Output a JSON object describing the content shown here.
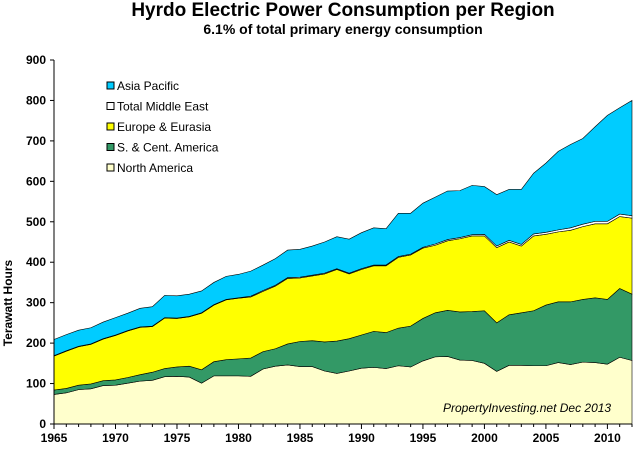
{
  "chart_data": {
    "type": "area",
    "stacked": true,
    "title": "Hyrdo Electric Power Consumption per Region",
    "subtitle": "6.1% of total primary energy consumption",
    "ylabel": "Terawatt Hours",
    "xlabel": "",
    "xlim": [
      1965,
      2012
    ],
    "ylim": [
      0,
      900
    ],
    "yticks": [
      0,
      100,
      200,
      300,
      400,
      500,
      600,
      700,
      800,
      900
    ],
    "xticks": [
      1965,
      1970,
      1975,
      1980,
      1985,
      1990,
      1995,
      2000,
      2005,
      2010
    ],
    "annotation": "PropertyInvesting.net  Dec 2013",
    "legend_position": "top-left",
    "x": [
      1965,
      1966,
      1967,
      1968,
      1969,
      1970,
      1971,
      1972,
      1973,
      1974,
      1975,
      1976,
      1977,
      1978,
      1979,
      1980,
      1981,
      1982,
      1983,
      1984,
      1985,
      1986,
      1987,
      1988,
      1989,
      1990,
      1991,
      1992,
      1993,
      1994,
      1995,
      1996,
      1997,
      1998,
      1999,
      2000,
      2001,
      2002,
      2003,
      2004,
      2005,
      2006,
      2007,
      2008,
      2009,
      2010,
      2011,
      2012
    ],
    "series": [
      {
        "name": "North America",
        "color": "#ffffcc",
        "values": [
          73,
          77,
          85,
          87,
          95,
          96,
          101,
          106,
          108,
          117,
          118,
          116,
          101,
          119,
          119,
          119,
          118,
          136,
          143,
          146,
          142,
          142,
          131,
          125,
          131,
          138,
          140,
          137,
          144,
          141,
          156,
          166,
          167,
          158,
          157,
          150,
          130,
          145,
          145,
          144,
          144,
          152,
          147,
          153,
          152,
          148,
          165,
          157
        ]
      },
      {
        "name": "S. & Cent. America",
        "color": "#339966",
        "values": [
          11,
          11,
          11,
          12,
          12,
          13,
          14,
          16,
          20,
          20,
          23,
          27,
          33,
          35,
          40,
          42,
          45,
          43,
          43,
          52,
          62,
          64,
          72,
          80,
          80,
          82,
          89,
          89,
          93,
          101,
          105,
          109,
          114,
          119,
          121,
          130,
          120,
          125,
          130,
          136,
          150,
          150,
          155,
          155,
          160,
          160,
          170,
          164
        ]
      },
      {
        "name": "Europe & Eurasia",
        "color": "#ffff00",
        "values": [
          84,
          92,
          95,
          98,
          103,
          110,
          115,
          117,
          113,
          125,
          120,
          122,
          140,
          140,
          148,
          150,
          151,
          149,
          155,
          162,
          157,
          160,
          168,
          177,
          160,
          162,
          162,
          165,
          175,
          176,
          174,
          167,
          172,
          181,
          187,
          185,
          186,
          180,
          165,
          185,
          175,
          173,
          177,
          180,
          183,
          187,
          178,
          188
        ]
      },
      {
        "name": "Total Middle East",
        "color": "#ffffff",
        "values": [
          1,
          1,
          1,
          1,
          1,
          1,
          1,
          1,
          1,
          1,
          1,
          1,
          1,
          1,
          1,
          1,
          2,
          2,
          2,
          2,
          2,
          2,
          2,
          2,
          2,
          2,
          2,
          2,
          2,
          2,
          2,
          3,
          3,
          3,
          3,
          4,
          4,
          4,
          4,
          5,
          5,
          5,
          6,
          6,
          6,
          6,
          6,
          6
        ]
      },
      {
        "name": "Asia Pacific",
        "color": "#00ccff",
        "values": [
          40,
          40,
          40,
          40,
          41,
          43,
          43,
          46,
          48,
          55,
          55,
          55,
          54,
          55,
          57,
          58,
          62,
          63,
          66,
          68,
          69,
          72,
          77,
          79,
          84,
          89,
          92,
          90,
          107,
          101,
          109,
          116,
          120,
          116,
          122,
          118,
          127,
          126,
          136,
          150,
          171,
          194,
          206,
          212,
          234,
          262,
          263,
          285
        ]
      }
    ]
  }
}
